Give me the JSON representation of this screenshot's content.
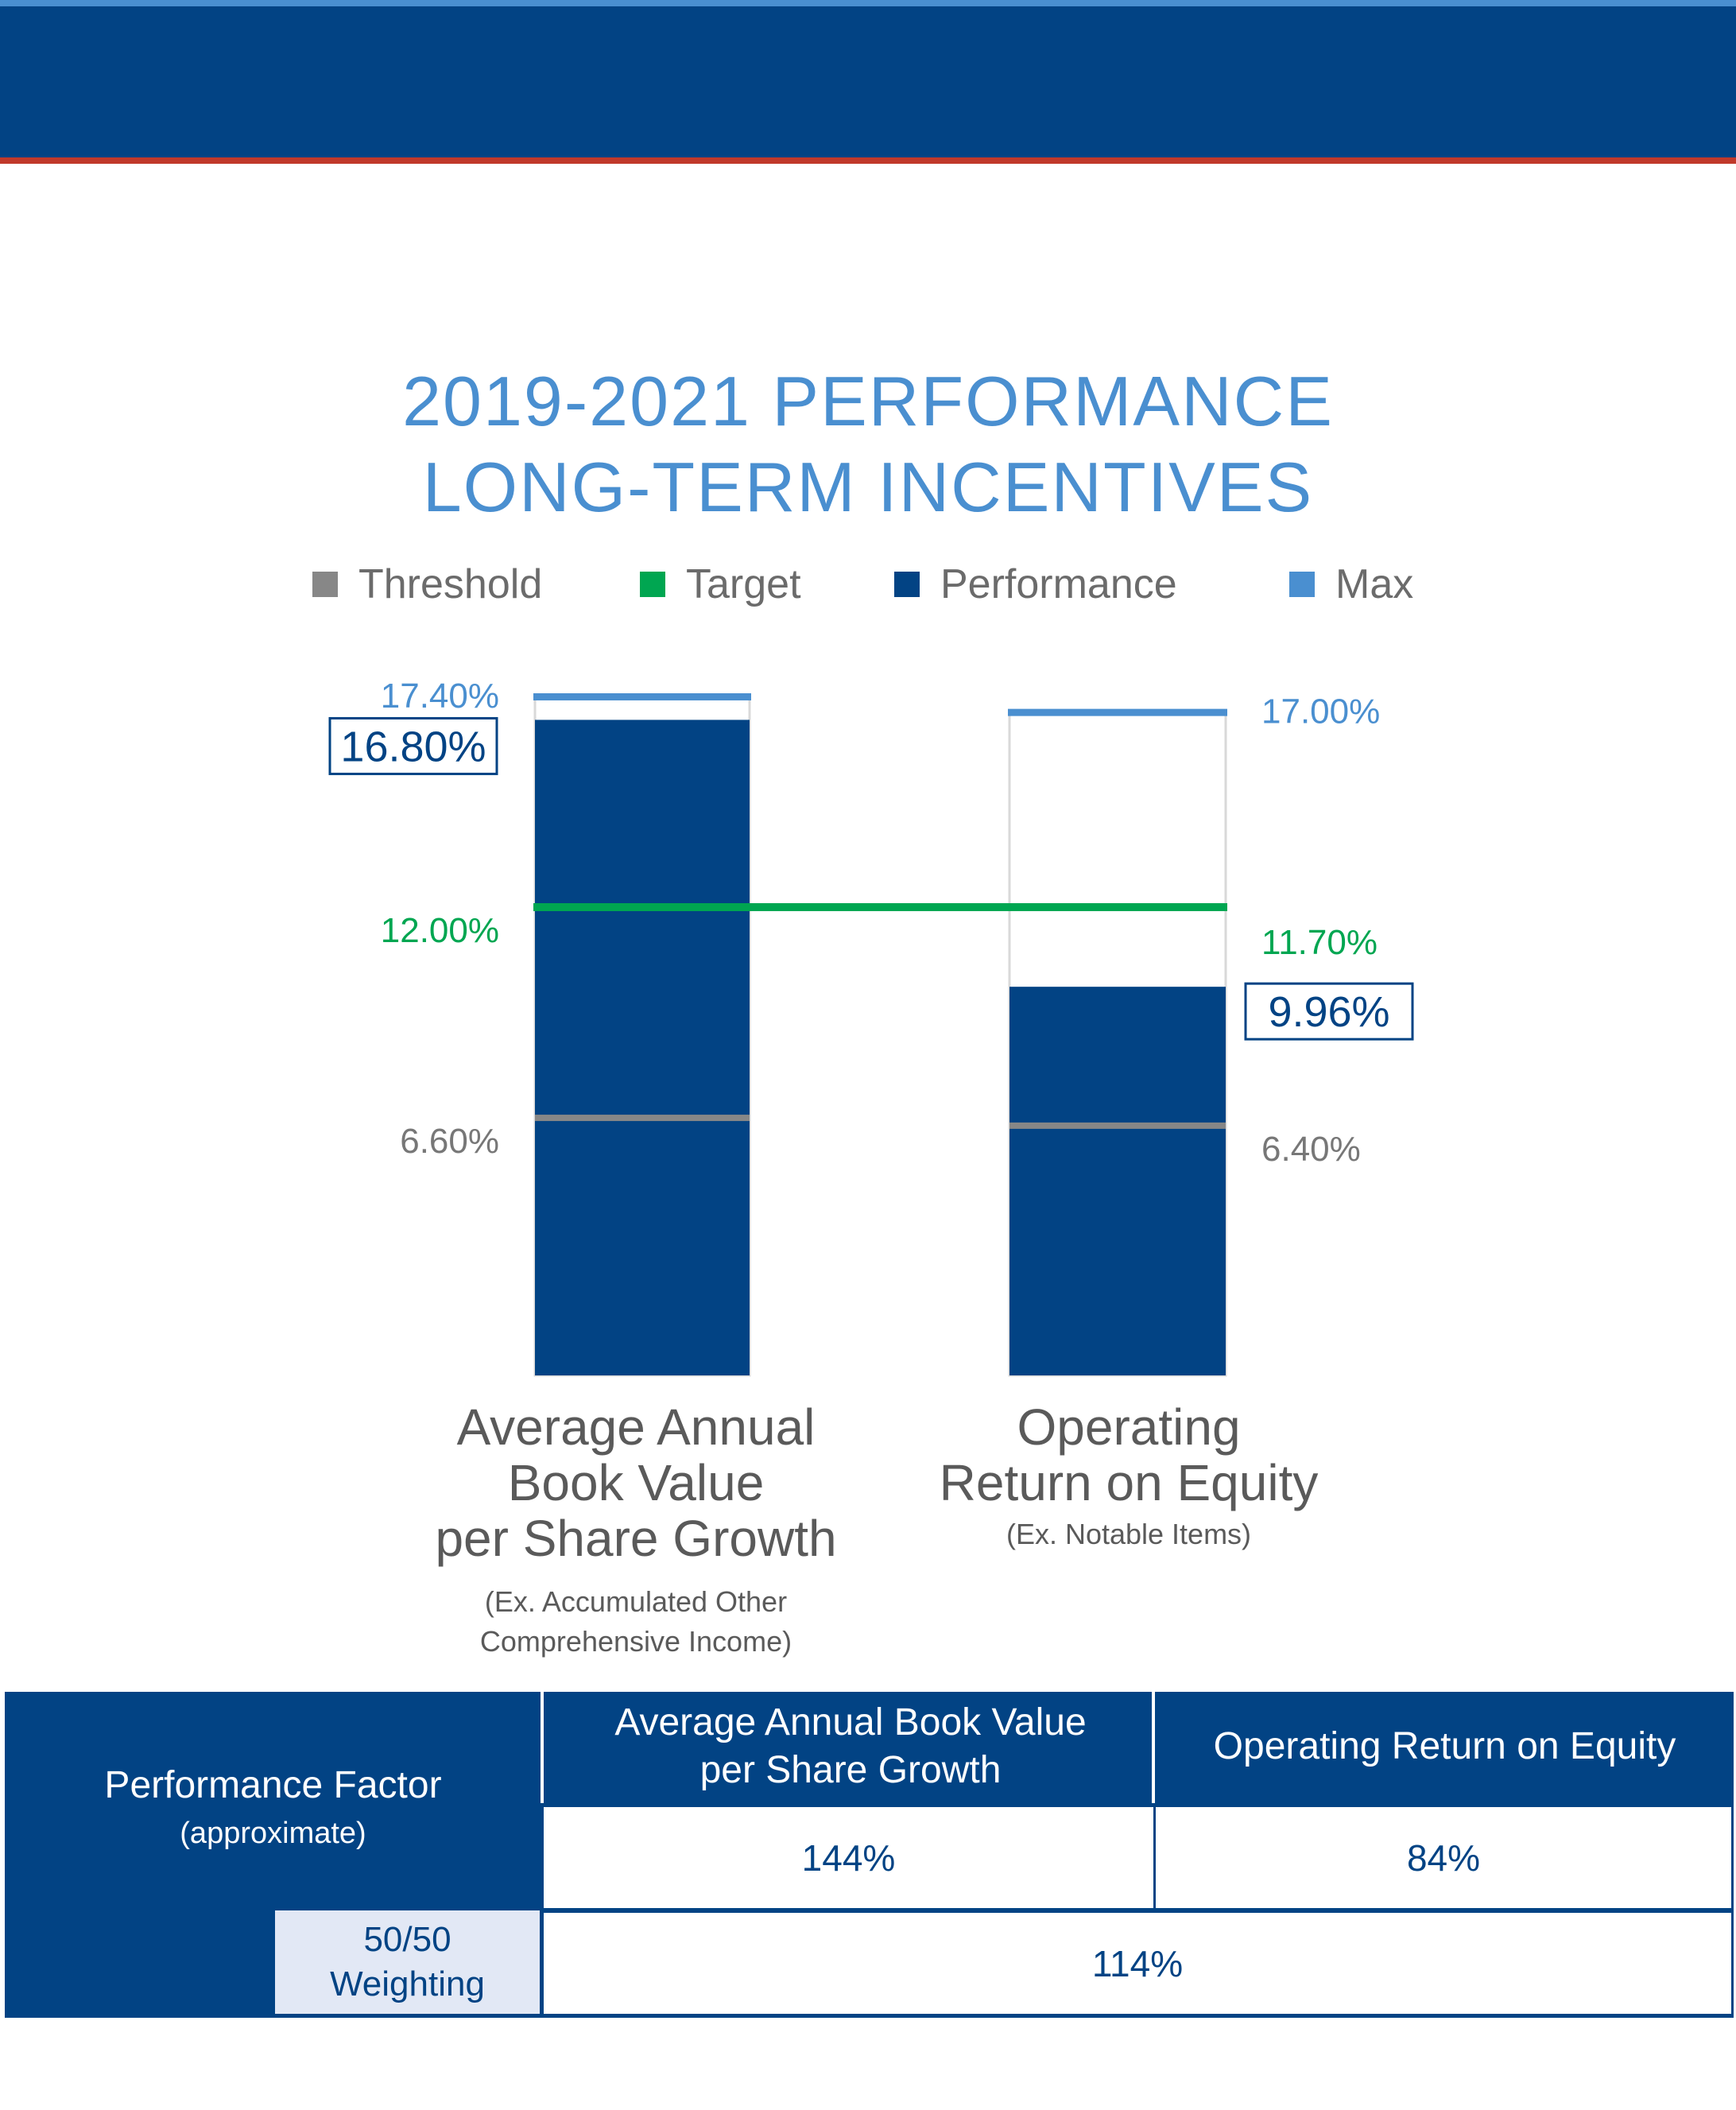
{
  "header": {
    "brand_color": "#024384",
    "accent_blue": "#4a8fd0",
    "accent_red": "#c0392b"
  },
  "title": {
    "line1": "2019-2021 PERFORMANCE",
    "line2": "LONG-TERM INCENTIVES"
  },
  "legend": [
    {
      "label": "Threshold",
      "color": "#878787"
    },
    {
      "label": "Target",
      "color": "#00a651"
    },
    {
      "label": "Performance",
      "color": "#024384"
    },
    {
      "label": "Max",
      "color": "#4a8fd0"
    }
  ],
  "chart_data": {
    "type": "bar",
    "title": "2019-2021 PERFORMANCE LONG-TERM INCENTIVES",
    "ylim": [
      0,
      17.4
    ],
    "grid": false,
    "legend_position": "top",
    "categories": [
      {
        "name": "Average Annual Book Value per Share Growth",
        "lines": [
          "Average Annual",
          "Book Value",
          "per Share Growth"
        ],
        "note": [
          "(Ex. Accumulated Other",
          "Comprehensive Income)"
        ],
        "threshold": 6.6,
        "target": 12.0,
        "performance": 16.8,
        "max": 17.4,
        "threshold_label": "6.60%",
        "target_label": "12.00%",
        "performance_label": "16.80%",
        "max_label": "17.40%"
      },
      {
        "name": "Operating Return on Equity",
        "lines": [
          "Operating",
          "Return on Equity"
        ],
        "note": [
          "(Ex. Notable Items)"
        ],
        "threshold": 6.4,
        "target": 11.7,
        "performance": 9.96,
        "max": 17.0,
        "threshold_label": "6.40%",
        "target_label": "11.70%",
        "performance_label": "9.96%",
        "max_label": "17.00%"
      }
    ]
  },
  "table": {
    "performance_factor": "Performance Factor",
    "approximate": "(approximate)",
    "col1": "Average Annual Book Value per Share Growth",
    "col2": "Operating Return on Equity",
    "val1": "144%",
    "val2": "84%",
    "weighting_line1": "50/50",
    "weighting_line2": "Weighting",
    "combined": "114%"
  }
}
